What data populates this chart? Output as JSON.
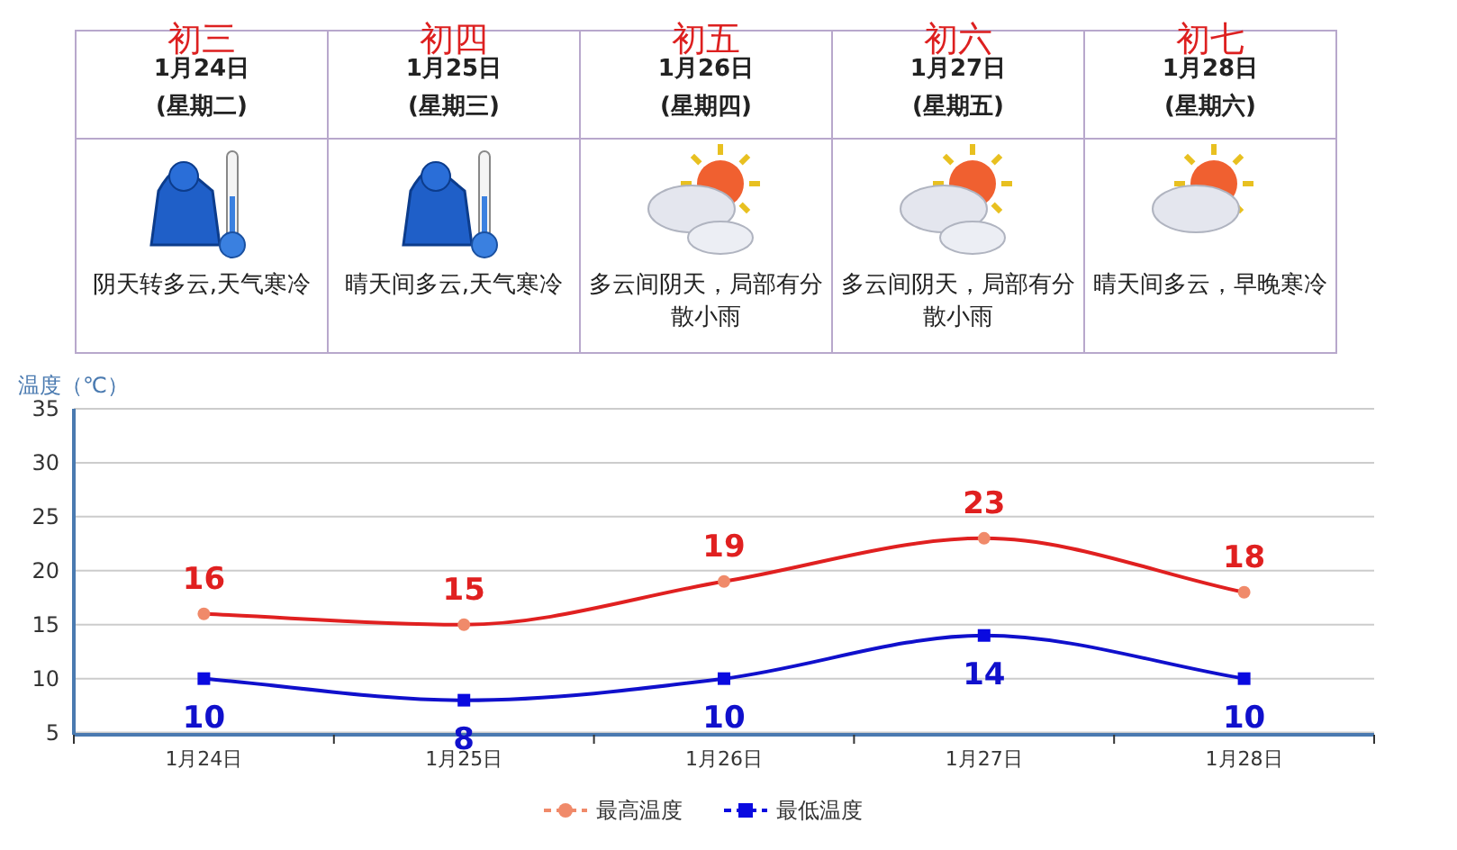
{
  "chart_data": [
    {
      "type": "other",
      "annotations": [
        "初三",
        "1月24日",
        "(星期二)",
        "阴天转多云,天气寒冷",
        "初四",
        "1月25日",
        "(星期三)",
        "晴天间多云,天气寒冷",
        "初五",
        "1月26日",
        "(星期四)",
        "多云间阴天，局部有分散小雨",
        "初六",
        "1月27日",
        "(星期五)",
        "多云间阴天，局部有分散小雨",
        "初七",
        "1月28日",
        "(星期六)",
        "晴天间多云，早晚寒冷"
      ]
    },
    {
      "type": "line",
      "ylabel": "温度（℃）",
      "categories": [
        "1月24日",
        "1月25日",
        "1月26日",
        "1月27日",
        "1月28日"
      ],
      "series": [
        {
          "name": "最高温度",
          "color": "#e02020",
          "colors": [
            "#f08a6a",
            "#f08a6a",
            "#f08a6a",
            "#f08a6a",
            "#f08a6a"
          ],
          "marker": "circle",
          "values": [
            16,
            15,
            19,
            23,
            18
          ]
        },
        {
          "name": "最低温度",
          "color": "#1010cc",
          "colors": [
            "#0a0ae0",
            "#0a0ae0",
            "#0a0ae0",
            "#0a0ae0",
            "#0a0ae0"
          ],
          "marker": "square",
          "values": [
            10,
            8,
            10,
            14,
            10
          ]
        }
      ],
      "ylim": [
        4.8,
        35
      ],
      "yticks": [
        5,
        10,
        15,
        20,
        25,
        30,
        35
      ],
      "grid": "y",
      "legend": "bottom",
      "data_labels": true,
      "line_style": "solid"
    }
  ]
}
